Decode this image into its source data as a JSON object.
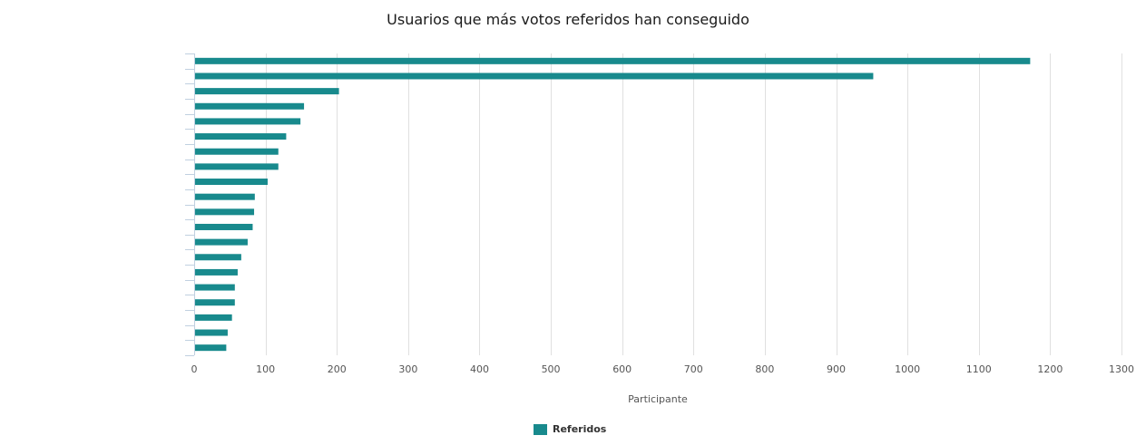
{
  "chart_data": {
    "type": "bar",
    "orientation": "horizontal",
    "title": "Usuarios que más votos referidos han conseguido",
    "xlabel": "Participante",
    "ylabel": "",
    "xlim": [
      0,
      1300
    ],
    "ticks": [
      0,
      100,
      200,
      300,
      400,
      500,
      600,
      700,
      800,
      900,
      1000,
      1100,
      1200,
      1300
    ],
    "grid": true,
    "legend_position": "bottom",
    "categories": [
      "",
      "",
      "",
      "",
      "",
      "",
      "",
      "",
      "",
      "",
      "",
      "",
      "",
      "",
      "",
      "",
      "",
      "",
      "",
      ""
    ],
    "series": [
      {
        "name": "Referidos",
        "color": "#188a8d",
        "values": [
          1172,
          952,
          203,
          154,
          149,
          129,
          118,
          118,
          103,
          85,
          84,
          82,
          75,
          66,
          61,
          57,
          57,
          53,
          47,
          45
        ]
      }
    ]
  }
}
